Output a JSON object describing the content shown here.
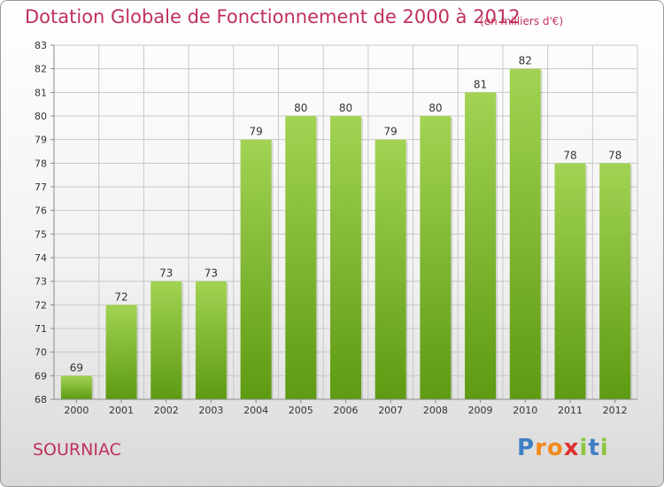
{
  "title": "Dotation Globale de Fonctionnement de 2000 à 2012",
  "subtitle": "(en milliers d'€)",
  "commune": "SOURNIAC",
  "logo": {
    "text": "Proxiti",
    "letters": [
      {
        "ch": "P",
        "color": "#3f7fc4"
      },
      {
        "ch": "r",
        "color": "#f28a1c"
      },
      {
        "ch": "o",
        "color": "#f28a1c"
      },
      {
        "ch": "x",
        "color": "#e03030"
      },
      {
        "ch": "i",
        "color": "#8cc63f"
      },
      {
        "ch": "t",
        "color": "#3f7fc4"
      },
      {
        "ch": "i",
        "color": "#8cc63f"
      }
    ]
  },
  "colors": {
    "title": "#c0305a",
    "bar_light": "#a2d354",
    "bar_dark": "#5e9a12",
    "grid": "#c8c8c8",
    "axis_text": "#333333"
  },
  "chart_data": {
    "type": "bar",
    "categories": [
      "2000",
      "2001",
      "2002",
      "2003",
      "2004",
      "2005",
      "2006",
      "2007",
      "2008",
      "2009",
      "2010",
      "2011",
      "2012"
    ],
    "values": [
      69,
      72,
      73,
      73,
      79,
      80,
      80,
      79,
      80,
      81,
      82,
      78,
      78
    ],
    "title": "Dotation Globale de Fonctionnement de 2000 à 2012",
    "subtitle": "(en milliers d'€)",
    "xlabel": "",
    "ylabel": "",
    "ylim": [
      68,
      83
    ],
    "yticks": [
      68,
      69,
      70,
      71,
      72,
      73,
      74,
      75,
      76,
      77,
      78,
      79,
      80,
      81,
      82,
      83
    ],
    "grid": true,
    "data_labels": true
  }
}
